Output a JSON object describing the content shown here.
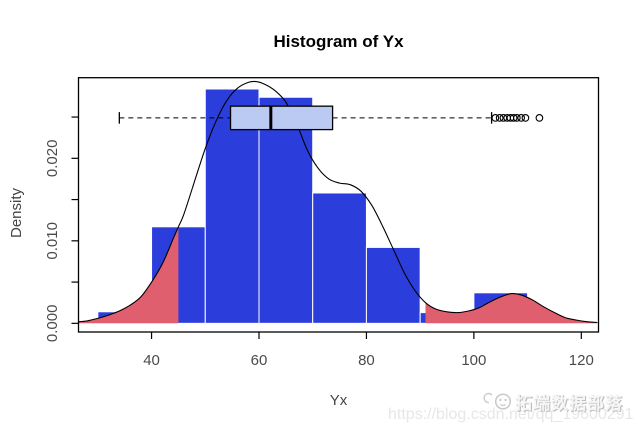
{
  "chart_data": {
    "type": "histogram",
    "title": "Histogram of Yx",
    "xlabel": "Yx",
    "ylabel": "Density",
    "xlim": [
      26.4,
      123.2
    ],
    "ylim": [
      -0.00105,
      0.02977
    ],
    "grid": false,
    "x_ticks": [
      {
        "v": 40,
        "label": "40"
      },
      {
        "v": 60,
        "label": "60"
      },
      {
        "v": 80,
        "label": "80"
      },
      {
        "v": 100,
        "label": "100"
      },
      {
        "v": 120,
        "label": "120"
      }
    ],
    "y_ticks": [
      {
        "v": 0.0,
        "label": "0.000"
      },
      {
        "v": 0.005,
        "label": ""
      },
      {
        "v": 0.01,
        "label": "0.010"
      },
      {
        "v": 0.015,
        "label": ""
      },
      {
        "v": 0.02,
        "label": "0.020"
      },
      {
        "v": 0.025,
        "label": ""
      }
    ],
    "histogram": {
      "breaks": [
        30,
        40,
        50,
        60,
        70,
        80,
        90,
        100,
        110,
        120
      ],
      "densities": [
        0.0014,
        0.0117,
        0.0284,
        0.0274,
        0.0158,
        0.0092,
        0.0013,
        0.0037,
        0
      ]
    },
    "density_curve": [
      [
        26.5,
        0.0002
      ],
      [
        28,
        0.0003
      ],
      [
        30,
        0.0006
      ],
      [
        32,
        0.001
      ],
      [
        34,
        0.0015
      ],
      [
        36,
        0.0022
      ],
      [
        38,
        0.0032
      ],
      [
        40,
        0.005
      ],
      [
        42,
        0.0072
      ],
      [
        44,
        0.0102
      ],
      [
        45,
        0.0117
      ],
      [
        46,
        0.0132
      ],
      [
        48,
        0.0172
      ],
      [
        50,
        0.0212
      ],
      [
        52,
        0.0245
      ],
      [
        54,
        0.027
      ],
      [
        56,
        0.0285
      ],
      [
        58,
        0.0292
      ],
      [
        59.5,
        0.0293
      ],
      [
        61,
        0.029
      ],
      [
        63,
        0.0282
      ],
      [
        65,
        0.0268
      ],
      [
        67,
        0.0242
      ],
      [
        69,
        0.021
      ],
      [
        71,
        0.0188
      ],
      [
        73,
        0.0175
      ],
      [
        75,
        0.017
      ],
      [
        77,
        0.0168
      ],
      [
        79,
        0.016
      ],
      [
        81,
        0.0143
      ],
      [
        83,
        0.0118
      ],
      [
        85,
        0.009
      ],
      [
        87,
        0.0062
      ],
      [
        89,
        0.004
      ],
      [
        91,
        0.0025
      ],
      [
        93,
        0.0017
      ],
      [
        95,
        0.0014
      ],
      [
        97,
        0.0013
      ],
      [
        99,
        0.0015
      ],
      [
        101,
        0.0019
      ],
      [
        103,
        0.0026
      ],
      [
        105,
        0.0032
      ],
      [
        107,
        0.0036
      ],
      [
        109,
        0.0034
      ],
      [
        111,
        0.0028
      ],
      [
        113,
        0.002
      ],
      [
        115,
        0.0013
      ],
      [
        117,
        0.0007
      ],
      [
        119,
        0.0004
      ],
      [
        121,
        0.0002
      ],
      [
        123,
        0.0001
      ]
    ],
    "shaded_regions": [
      {
        "from": 26.5,
        "to": 45
      },
      {
        "from": 91,
        "to": 123
      }
    ],
    "boxplot": {
      "whisker_low": 34,
      "q1": 54.7,
      "median": 62.2,
      "q3": 73.7,
      "whisker_high": 103.3,
      "outliers": [
        104,
        104.8,
        105.5,
        106.2,
        106.8,
        107.4,
        108,
        108.8,
        109.6,
        112.2
      ],
      "y_center": 0.0249,
      "box_half": 0.00142,
      "cap_half": 0.0007
    },
    "colors": {
      "bar_fill": "#2b3edc",
      "bar_border": "#ffffff",
      "shade_fill": "#e05f6e",
      "box_fill": "#bacaf2",
      "box_border": "#000000",
      "curve": "#000000",
      "axis": "#000000",
      "tick_label": "#4a4a4a"
    }
  },
  "watermark": {
    "url": "https://blog.csdn.net/qq_19600291",
    "brand": "拓端数据部落"
  }
}
